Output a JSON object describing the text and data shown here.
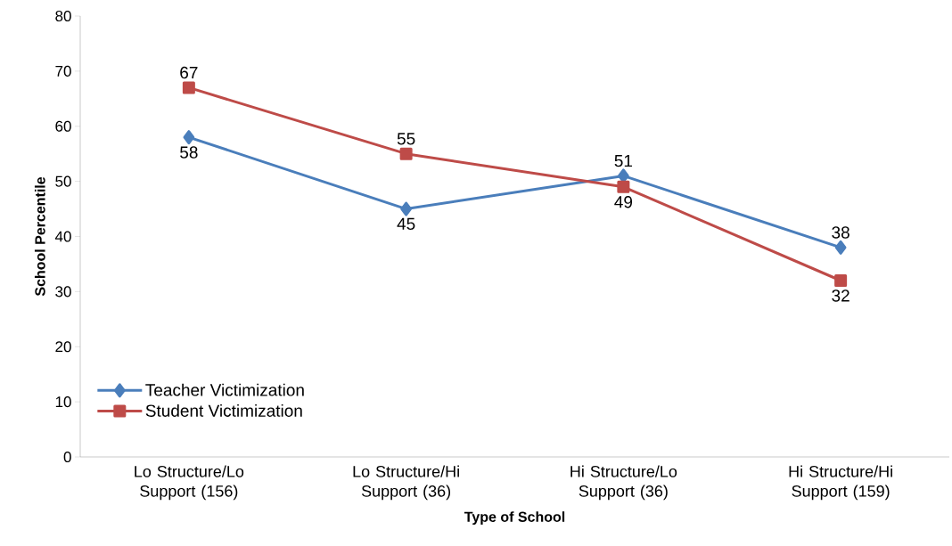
{
  "chart_data": {
    "type": "line",
    "xlabel": "Type of School",
    "ylabel": "School Percentile",
    "categories": [
      "Lo Structure/Lo Support (156)",
      "Lo Structure/Hi Support (36)",
      "Hi Structure/Lo Support (36)",
      "Hi Structure/Hi Support (159)"
    ],
    "series": [
      {
        "name": "Teacher Victimization",
        "color": "#4a7ebb",
        "marker": "diamond",
        "values": [
          58,
          45,
          51,
          38
        ]
      },
      {
        "name": "Student Victimization",
        "color": "#be4b48",
        "marker": "square",
        "values": [
          67,
          55,
          49,
          32
        ]
      }
    ],
    "ylim": [
      0,
      80
    ],
    "yticks": [
      0,
      10,
      20,
      30,
      40,
      50,
      60,
      70,
      80
    ],
    "data_labels": true,
    "legend": "bottom left",
    "grid": false,
    "line_style": "solid"
  }
}
